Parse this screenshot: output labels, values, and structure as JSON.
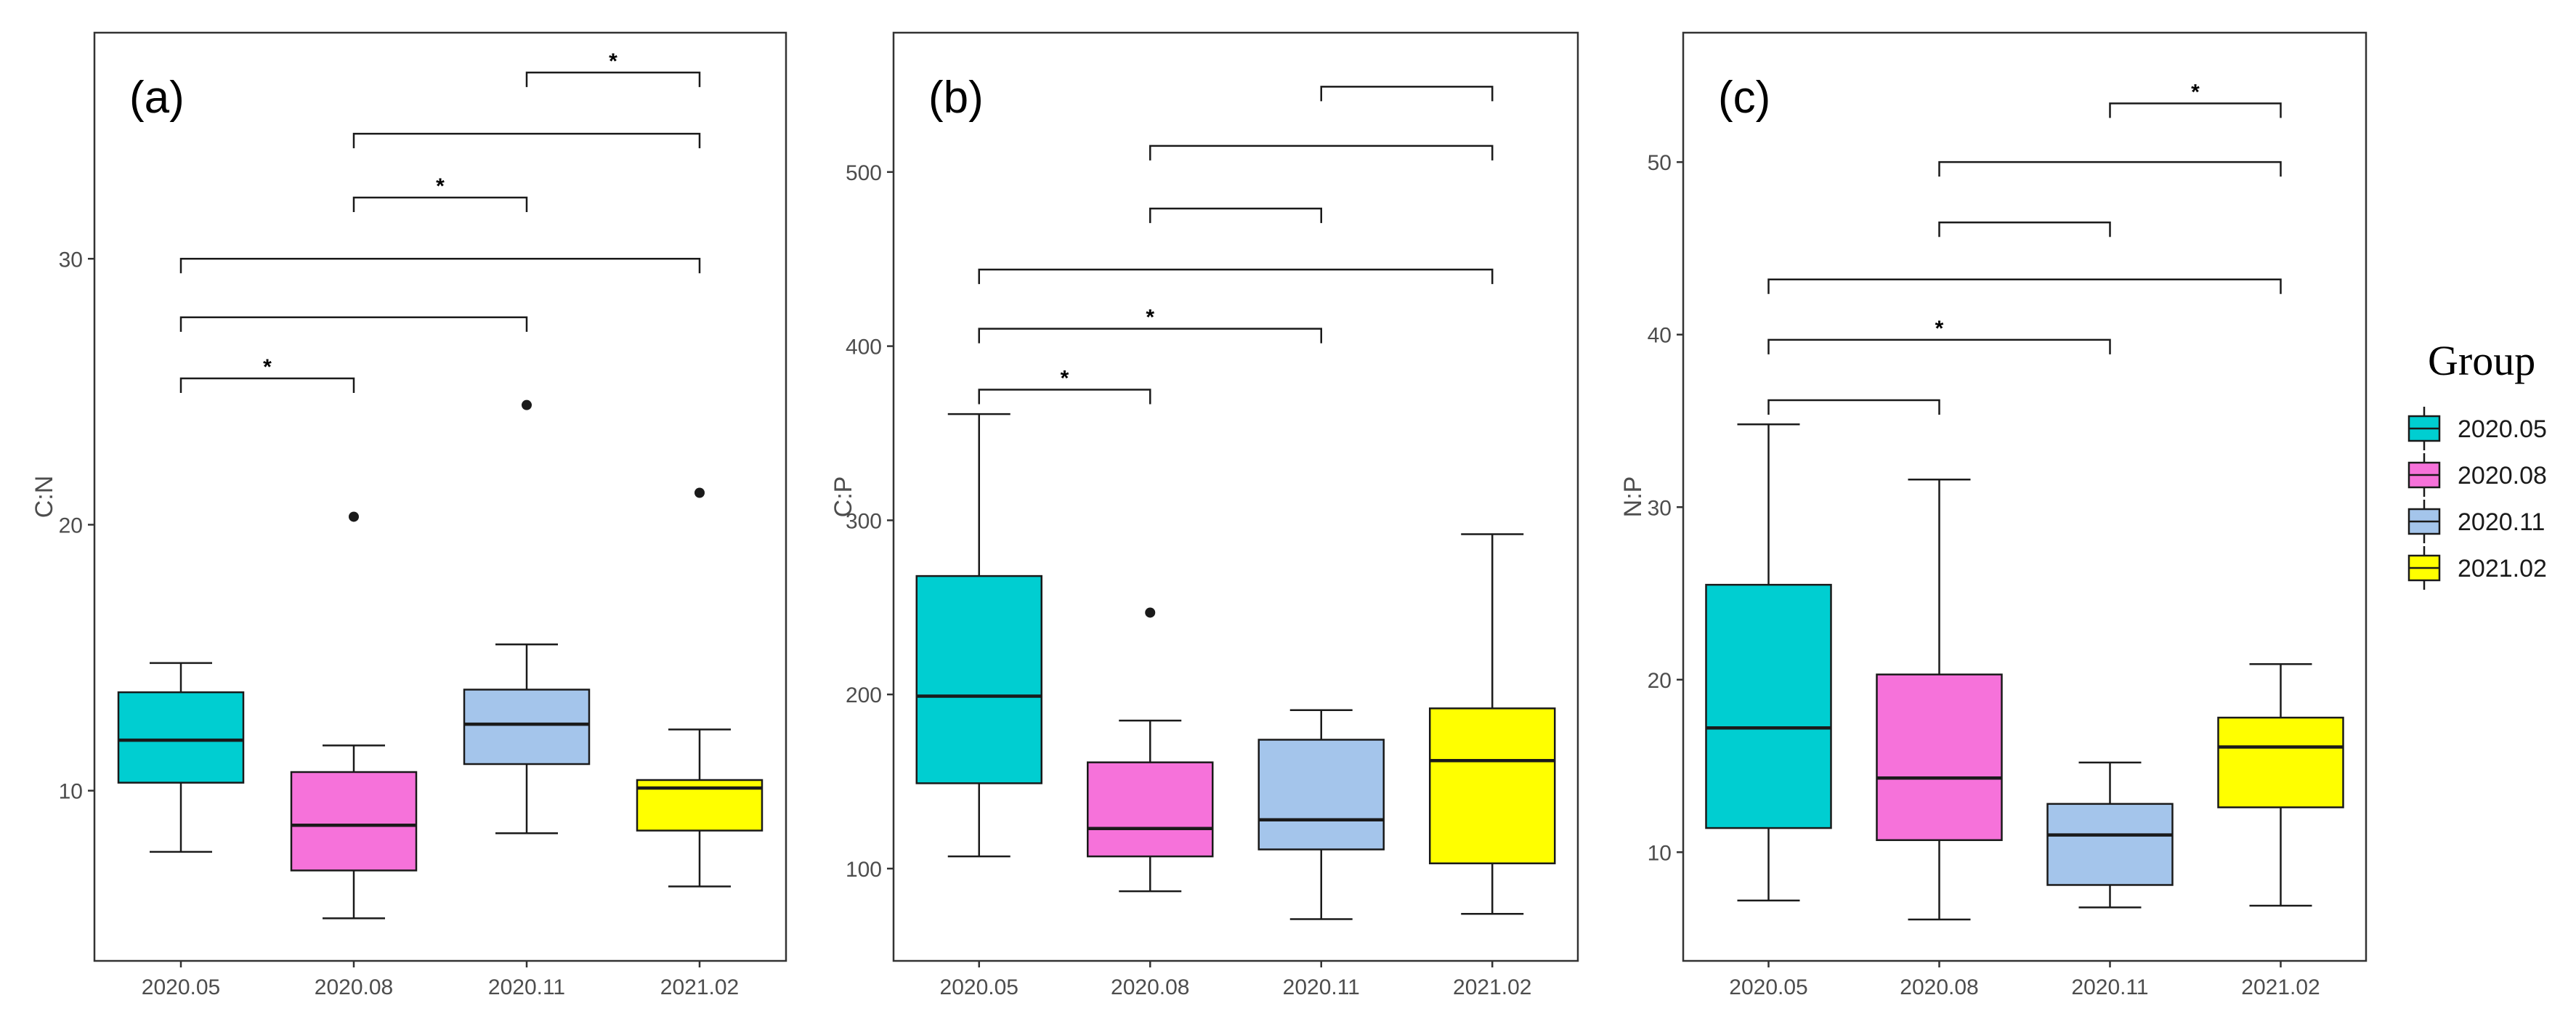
{
  "chart_data": [
    {
      "type": "boxplot",
      "panel_label": "(a)",
      "ylabel": "C:N",
      "categories": [
        "2020.05",
        "2020.08",
        "2020.11",
        "2021.02"
      ],
      "yticks": [
        10,
        20,
        30
      ],
      "ylim": [
        3.6,
        38.5
      ],
      "boxes": [
        {
          "group": "2020.05",
          "whisker_low": 7.7,
          "q1": 10.3,
          "median": 11.9,
          "q3": 13.7,
          "whisker_high": 14.8,
          "outliers": []
        },
        {
          "group": "2020.08",
          "whisker_low": 5.2,
          "q1": 7.0,
          "median": 8.7,
          "q3": 10.7,
          "whisker_high": 11.7,
          "outliers": [
            20.3
          ]
        },
        {
          "group": "2020.11",
          "whisker_low": 8.4,
          "q1": 11.0,
          "median": 12.5,
          "q3": 13.8,
          "whisker_high": 15.5,
          "outliers": [
            24.5
          ]
        },
        {
          "group": "2021.02",
          "whisker_low": 6.4,
          "q1": 8.5,
          "median": 10.1,
          "q3": 10.4,
          "whisker_high": 12.3,
          "outliers": [
            21.2
          ]
        }
      ],
      "comparisons": [
        {
          "from": 0,
          "to": 1,
          "y": 25.5,
          "label": "*"
        },
        {
          "from": 0,
          "to": 2,
          "y": 27.8,
          "label": ""
        },
        {
          "from": 0,
          "to": 3,
          "y": 30.0,
          "label": ""
        },
        {
          "from": 1,
          "to": 2,
          "y": 32.3,
          "label": "*"
        },
        {
          "from": 1,
          "to": 3,
          "y": 34.7,
          "label": ""
        },
        {
          "from": 2,
          "to": 3,
          "y": 37.0,
          "label": "*"
        }
      ]
    },
    {
      "type": "boxplot",
      "panel_label": "(b)",
      "ylabel": "C:P",
      "categories": [
        "2020.05",
        "2020.08",
        "2020.11",
        "2021.02"
      ],
      "yticks": [
        100,
        200,
        300,
        400,
        500
      ],
      "ylim": [
        47,
        580
      ],
      "boxes": [
        {
          "group": "2020.05",
          "whisker_low": 107,
          "q1": 149,
          "median": 199,
          "q3": 268,
          "whisker_high": 361,
          "outliers": []
        },
        {
          "group": "2020.08",
          "whisker_low": 87,
          "q1": 107,
          "median": 123,
          "q3": 161,
          "whisker_high": 185,
          "outliers": [
            247
          ]
        },
        {
          "group": "2020.11",
          "whisker_low": 71,
          "q1": 111,
          "median": 128,
          "q3": 174,
          "whisker_high": 191,
          "outliers": []
        },
        {
          "group": "2021.02",
          "whisker_low": 74,
          "q1": 103,
          "median": 162,
          "q3": 192,
          "whisker_high": 292,
          "outliers": []
        }
      ],
      "comparisons": [
        {
          "from": 0,
          "to": 1,
          "y": 375,
          "label": "*"
        },
        {
          "from": 0,
          "to": 2,
          "y": 410,
          "label": "*"
        },
        {
          "from": 0,
          "to": 3,
          "y": 444,
          "label": ""
        },
        {
          "from": 1,
          "to": 2,
          "y": 479,
          "label": ""
        },
        {
          "from": 1,
          "to": 3,
          "y": 515,
          "label": ""
        },
        {
          "from": 2,
          "to": 3,
          "y": 549,
          "label": ""
        }
      ]
    },
    {
      "type": "boxplot",
      "panel_label": "(c)",
      "ylabel": "N:P",
      "categories": [
        "2020.05",
        "2020.08",
        "2020.11",
        "2021.02"
      ],
      "yticks": [
        10,
        20,
        30,
        40,
        50
      ],
      "ylim": [
        3.7,
        57.5
      ],
      "boxes": [
        {
          "group": "2020.05",
          "whisker_low": 7.2,
          "q1": 11.4,
          "median": 17.2,
          "q3": 25.5,
          "whisker_high": 34.8,
          "outliers": []
        },
        {
          "group": "2020.08",
          "whisker_low": 6.1,
          "q1": 10.7,
          "median": 14.3,
          "q3": 20.3,
          "whisker_high": 31.6,
          "outliers": []
        },
        {
          "group": "2020.11",
          "whisker_low": 6.8,
          "q1": 8.1,
          "median": 11.0,
          "q3": 12.8,
          "whisker_high": 15.2,
          "outliers": []
        },
        {
          "group": "2021.02",
          "whisker_low": 6.9,
          "q1": 12.6,
          "median": 16.1,
          "q3": 17.8,
          "whisker_high": 20.9,
          "outliers": []
        }
      ],
      "comparisons": [
        {
          "from": 0,
          "to": 1,
          "y": 36.2,
          "label": ""
        },
        {
          "from": 0,
          "to": 2,
          "y": 39.7,
          "label": "*"
        },
        {
          "from": 0,
          "to": 3,
          "y": 43.2,
          "label": ""
        },
        {
          "from": 1,
          "to": 2,
          "y": 46.5,
          "label": ""
        },
        {
          "from": 1,
          "to": 3,
          "y": 50.0,
          "label": ""
        },
        {
          "from": 2,
          "to": 3,
          "y": 53.4,
          "label": "*"
        }
      ]
    }
  ],
  "legend": {
    "title": "Group",
    "entries": [
      {
        "label": "2020.05",
        "color": "#00CED1"
      },
      {
        "label": "2020.08",
        "color": "#F672DA"
      },
      {
        "label": "2020.11",
        "color": "#A4C5EB"
      },
      {
        "label": "2021.02",
        "color": "#FFFF00"
      }
    ]
  }
}
